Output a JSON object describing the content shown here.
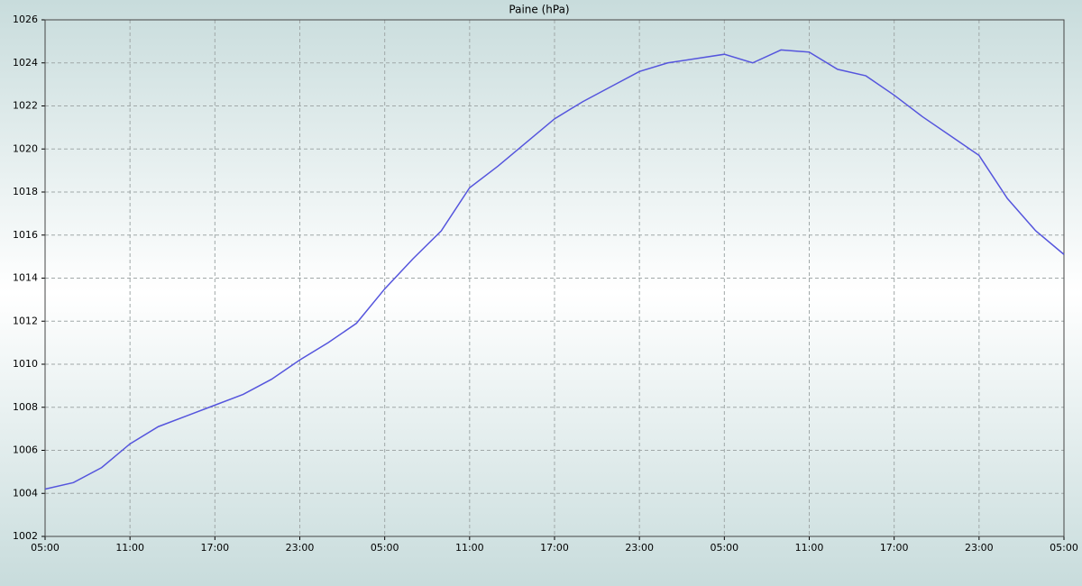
{
  "chart_data": {
    "type": "line",
    "title": "Paine (hPa)",
    "xlim": [
      0,
      72
    ],
    "xticks": [
      {
        "value": 0,
        "label": "05:00"
      },
      {
        "value": 6,
        "label": "11:00"
      },
      {
        "value": 12,
        "label": "17:00"
      },
      {
        "value": 18,
        "label": "23:00"
      },
      {
        "value": 24,
        "label": "05:00"
      },
      {
        "value": 30,
        "label": "11:00"
      },
      {
        "value": 36,
        "label": "17:00"
      },
      {
        "value": 42,
        "label": "23:00"
      },
      {
        "value": 48,
        "label": "05:00"
      },
      {
        "value": 54,
        "label": "11:00"
      },
      {
        "value": 60,
        "label": "17:00"
      },
      {
        "value": 66,
        "label": "23:00"
      },
      {
        "value": 72,
        "label": "05:00"
      }
    ],
    "ylim": [
      1002,
      1026
    ],
    "yticks": [
      1002,
      1004,
      1006,
      1008,
      1010,
      1012,
      1014,
      1016,
      1018,
      1020,
      1022,
      1024,
      1026
    ],
    "grid": true,
    "x": [
      0,
      2,
      4,
      6,
      8,
      10,
      12,
      14,
      16,
      18,
      20,
      22,
      24,
      26,
      28,
      30,
      32,
      34,
      36,
      38,
      40,
      42,
      44,
      46,
      48,
      50,
      52,
      54,
      56,
      58,
      60,
      62,
      64,
      66,
      68,
      70,
      72
    ],
    "series": [
      {
        "color": "#5555dd",
        "values": [
          1004.2,
          1004.5,
          1005.2,
          1006.3,
          1007.1,
          1007.6,
          1008.1,
          1008.6,
          1009.3,
          1010.2,
          1011.0,
          1011.9,
          1013.5,
          1014.9,
          1016.2,
          1018.2,
          1019.2,
          1020.3,
          1021.4,
          1022.2,
          1022.9,
          1023.6,
          1024.0,
          1024.2,
          1024.4,
          1024.0,
          1024.6,
          1024.5,
          1023.7,
          1023.4,
          1022.5,
          1021.5,
          1020.6,
          1019.7,
          1017.7,
          1016.2,
          1015.1
        ]
      }
    ]
  }
}
